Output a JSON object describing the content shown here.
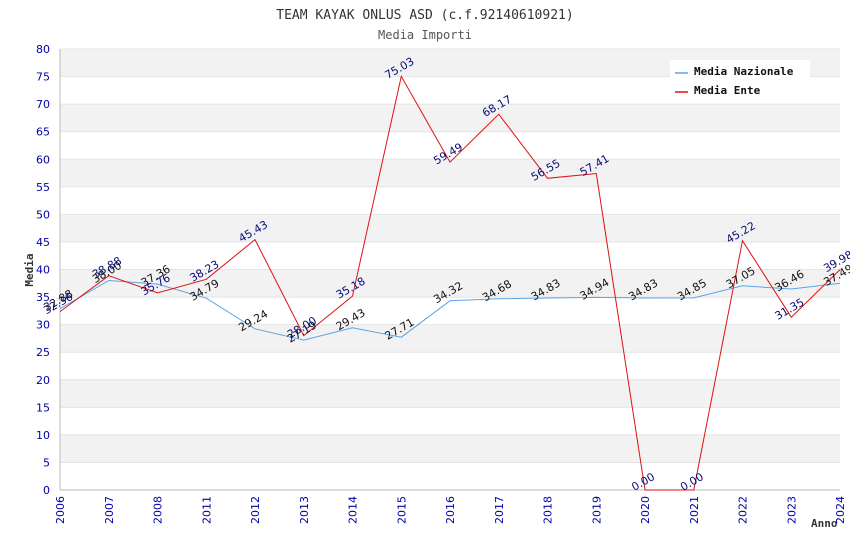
{
  "chart_data": {
    "type": "line",
    "title": "TEAM KAYAK ONLUS ASD (c.f.92140610921)",
    "subtitle": "Media Importi",
    "xlabel": "Anno",
    "ylabel": "Media",
    "ylim": [
      0,
      80
    ],
    "yticks": [
      "0",
      "5",
      "10",
      "15",
      "20",
      "25",
      "30",
      "35",
      "40",
      "45",
      "50",
      "55",
      "60",
      "65",
      "70",
      "75",
      "80"
    ],
    "categories": [
      "2006",
      "2007",
      "2008",
      "2011",
      "2012",
      "2013",
      "2014",
      "2015",
      "2016",
      "2017",
      "2018",
      "2019",
      "2020",
      "2021",
      "2022",
      "2023",
      "2024"
    ],
    "legend_position": "top-right",
    "series": [
      {
        "name": "Media Nazionale",
        "color": "#5ba3e6",
        "label_color": "#111111",
        "values": [
          32.88,
          38.0,
          37.36,
          34.79,
          29.24,
          27.19,
          29.43,
          27.71,
          34.32,
          34.68,
          34.83,
          34.94,
          34.83,
          34.85,
          37.05,
          36.46,
          37.49
        ],
        "labels": [
          "32.88",
          "38.00",
          "37.36",
          "34.79",
          "29.24",
          "27.19",
          "29.43",
          "27.71",
          "34.32",
          "34.68",
          "34.83",
          "34.94",
          "34.83",
          "34.85",
          "37.05",
          "36.46",
          "37.49"
        ]
      },
      {
        "name": "Media Ente",
        "color": "#e01010",
        "label_color": "#0a0a7a",
        "values": [
          32.36,
          38.88,
          35.76,
          38.23,
          45.43,
          28.0,
          35.18,
          75.03,
          59.49,
          68.17,
          56.55,
          57.41,
          0.0,
          0.0,
          45.22,
          31.35,
          39.98
        ],
        "labels": [
          "32.36",
          "38.88",
          "35.76",
          "38.23",
          "45.43",
          "28.00",
          "35.18",
          "75.03",
          "59.49",
          "68.17",
          "56.55",
          "57.41",
          "0.00",
          "0.00",
          "45.22",
          "31.35",
          "39.98"
        ]
      }
    ]
  }
}
